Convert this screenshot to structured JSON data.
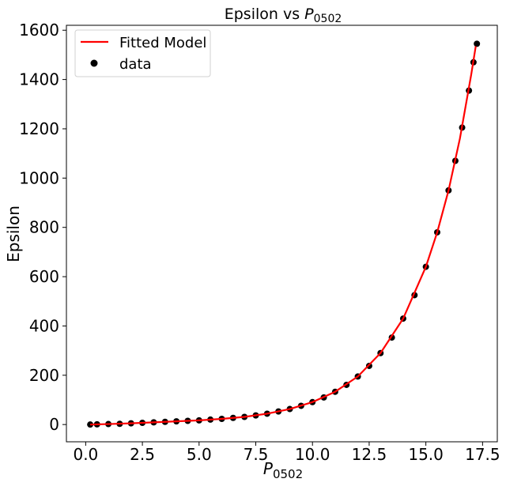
{
  "chart_data": {
    "type": "scatter",
    "title": {
      "prefix": "Epsilon vs ",
      "var": "P",
      "sub": "0502"
    },
    "xlabel": {
      "var": "P",
      "sub": "0502"
    },
    "ylabel": "Epsilon",
    "xlim": [
      -0.85,
      18.15
    ],
    "ylim": [
      -70,
      1620
    ],
    "xticks": [
      0.0,
      2.5,
      5.0,
      7.5,
      10.0,
      12.5,
      15.0,
      17.5
    ],
    "xtick_labels": [
      "0.0",
      "2.5",
      "5.0",
      "7.5",
      "10.0",
      "12.5",
      "15.0",
      "17.5"
    ],
    "yticks": [
      0,
      200,
      400,
      600,
      800,
      1000,
      1200,
      1400,
      1600
    ],
    "ytick_labels": [
      "0",
      "200",
      "400",
      "600",
      "800",
      "1000",
      "1200",
      "1400",
      "1600"
    ],
    "grid": false,
    "legend_position": "top-left",
    "series": [
      {
        "name": "Fitted Model",
        "kind": "line",
        "color": "#ff0000",
        "x": [
          0.2,
          1.0,
          2.0,
          3.0,
          4.0,
          5.0,
          6.0,
          7.0,
          8.0,
          9.0,
          10.0,
          11.0,
          12.0,
          13.0,
          14.0,
          15.0,
          15.5,
          16.0,
          16.5,
          17.0,
          17.2
        ],
        "y": [
          0,
          2,
          5,
          9,
          13,
          17,
          23,
          31,
          44,
          63,
          91,
          133,
          195,
          290,
          430,
          640,
          780,
          950,
          1160,
          1420,
          1535
        ]
      },
      {
        "name": "data",
        "kind": "scatter",
        "color": "#000000",
        "x": [
          0.2,
          0.5,
          1.0,
          1.5,
          2.0,
          2.5,
          3.0,
          3.5,
          4.0,
          4.5,
          5.0,
          5.5,
          6.0,
          6.5,
          7.0,
          7.5,
          8.0,
          8.5,
          9.0,
          9.5,
          10.0,
          10.5,
          11.0,
          11.5,
          12.0,
          12.5,
          13.0,
          13.5,
          14.0,
          14.5,
          15.0,
          15.5,
          16.0,
          16.3,
          16.6,
          16.9,
          17.1,
          17.25
        ],
        "y": [
          0,
          1,
          2,
          3,
          5,
          7,
          9,
          11,
          13,
          15,
          17,
          20,
          23,
          27,
          31,
          37,
          44,
          53,
          63,
          76,
          91,
          110,
          133,
          161,
          195,
          238,
          290,
          353,
          430,
          525,
          640,
          780,
          950,
          1070,
          1205,
          1355,
          1470,
          1545
        ]
      }
    ]
  }
}
